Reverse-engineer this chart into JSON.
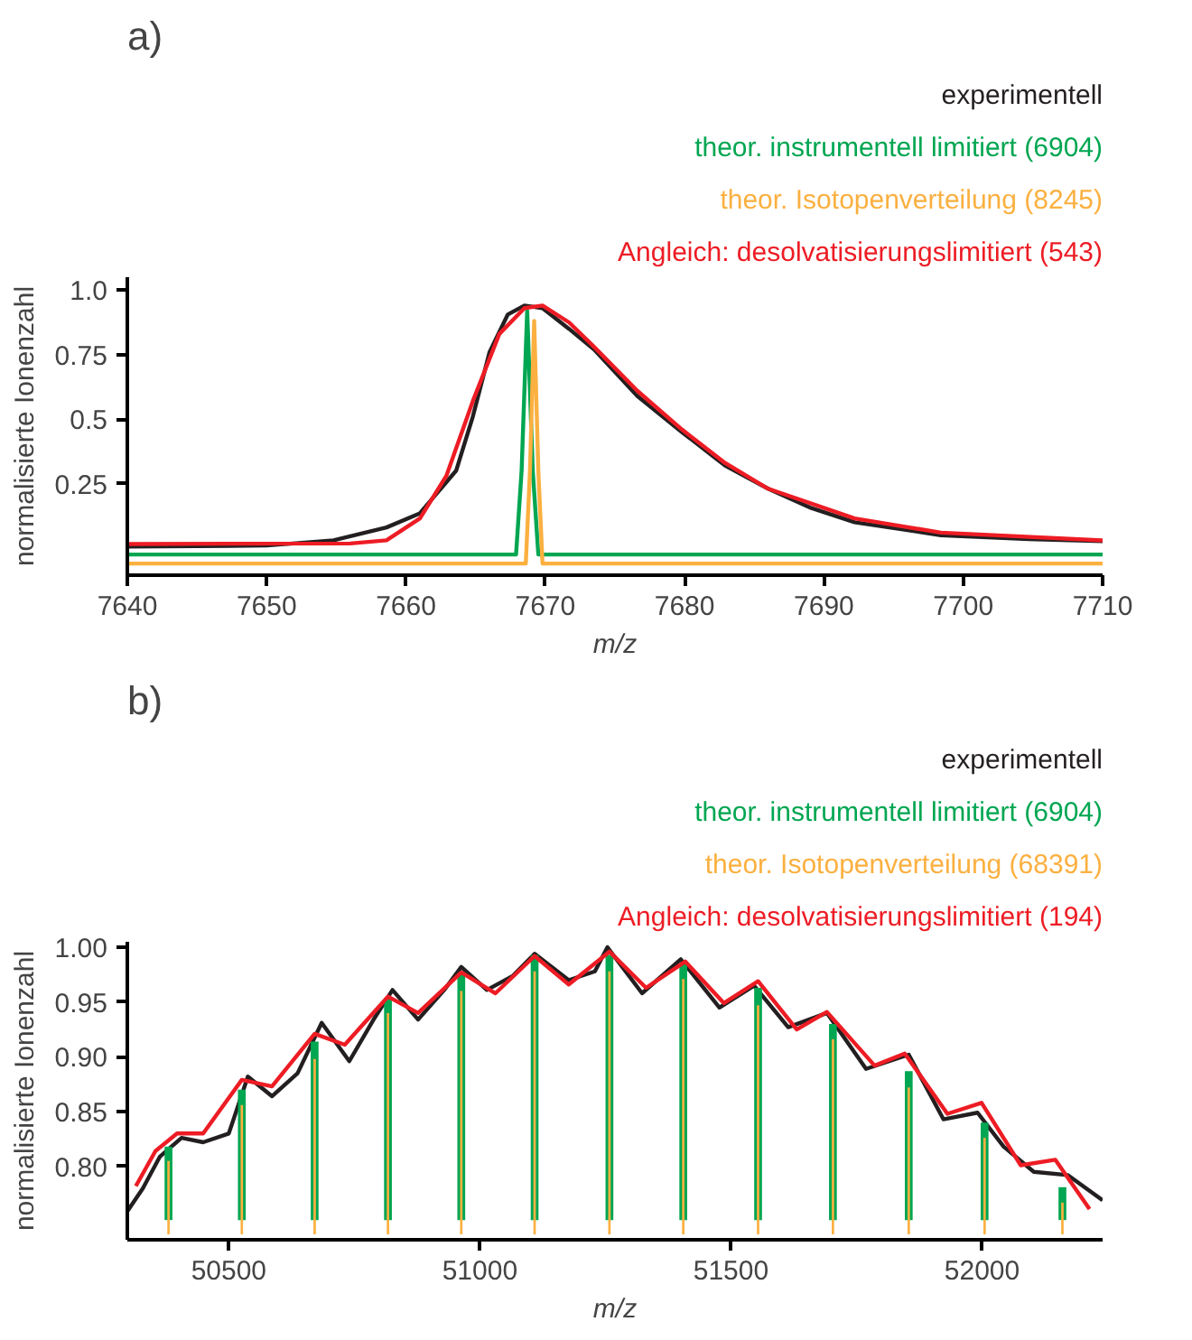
{
  "chart_data": [
    {
      "type": "line",
      "title": "a)",
      "xlabel": "m/z",
      "ylabel": "normalisierte Ionenzahl",
      "xlim": [
        7640,
        7710
      ],
      "ylim": [
        -0.105,
        1.05
      ],
      "xticks": [
        7640,
        7650,
        7660,
        7670,
        7680,
        7690,
        7700,
        7710
      ],
      "yticks": [
        {
          "value": 0.25,
          "label": "0.25"
        },
        {
          "value": 0.5,
          "label": "0.5"
        },
        {
          "value": 0.75,
          "label": "0.75"
        },
        {
          "value": 1,
          "label": "1.0"
        }
      ],
      "series": [
        {
          "name": "experimentell",
          "color": "#231f20",
          "x": [
            7640,
            7650,
            7654.8,
            7658.6,
            7661,
            7663.6,
            7664.8,
            7666,
            7667.3,
            7668.5,
            7669.8,
            7671.7,
            7673.5,
            7676.6,
            7679.8,
            7682.9,
            7686,
            7689.1,
            7692.2,
            7698.4,
            7704.7,
            7710
          ],
          "values": [
            0.006,
            0.01,
            0.03,
            0.08,
            0.135,
            0.3,
            0.51,
            0.76,
            0.905,
            0.94,
            0.93,
            0.85,
            0.77,
            0.59,
            0.45,
            0.32,
            0.23,
            0.155,
            0.1,
            0.05,
            0.035,
            0.027
          ]
        },
        {
          "name": "theor. instrumentell limitiert (6904)",
          "color": "#00a651",
          "x": [
            7640,
            7667.9,
            7668.3,
            7668.7,
            7669.1,
            7669.5,
            7710
          ],
          "values": [
            -0.025,
            -0.025,
            0.3,
            0.92,
            0.3,
            -0.025,
            -0.025
          ]
        },
        {
          "name": "theor. Isotopenverteilung (8245)",
          "color": "#fbb040",
          "x": [
            7640,
            7668.6,
            7668.9,
            7669.2,
            7669.5,
            7669.8,
            7710
          ],
          "values": [
            -0.06,
            -0.06,
            0.3,
            0.88,
            0.3,
            -0.06,
            -0.06
          ]
        },
        {
          "name": "Angleich: desolvatisierungslimitiert (543)",
          "color": "#ed1c24",
          "x": [
            7640,
            7656,
            7658.6,
            7661,
            7662.9,
            7664.8,
            7666.7,
            7668.5,
            7669.8,
            7671.7,
            7673.5,
            7676.6,
            7679.8,
            7682.9,
            7686,
            7692.2,
            7698.4,
            7710
          ],
          "values": [
            0.016,
            0.018,
            0.03,
            0.115,
            0.28,
            0.57,
            0.83,
            0.93,
            0.94,
            0.875,
            0.78,
            0.61,
            0.46,
            0.33,
            0.23,
            0.115,
            0.06,
            0.03
          ]
        }
      ]
    },
    {
      "type": "line",
      "title": "b)",
      "xlabel": "m/z",
      "ylabel": "normalisierte Ionenzahl",
      "xlim": [
        50298,
        52240
      ],
      "ylim": [
        0.733,
        1.005
      ],
      "xticks": [
        50500,
        51000,
        51500,
        52000
      ],
      "yticks": [
        {
          "value": 0.8,
          "label": "0.80"
        },
        {
          "value": 0.85,
          "label": "0.85"
        },
        {
          "value": 0.9,
          "label": "0.90"
        },
        {
          "value": 0.95,
          "label": "0.95"
        },
        {
          "value": 1,
          "label": "1.00"
        }
      ],
      "series": [
        {
          "name": "experimentell",
          "color": "#231f20",
          "x": [
            50298,
            50329,
            50363,
            50406,
            50449,
            50500,
            50538,
            50586,
            50637,
            50685,
            50740,
            50791,
            50826,
            50877,
            50929,
            50963,
            51014,
            51066,
            51109,
            51177,
            51229,
            51254,
            51323,
            51400,
            51477,
            51546,
            51614,
            51691,
            51769,
            51854,
            51923,
            51991,
            52043,
            52103,
            52171,
            52240
          ],
          "values": [
            0.759,
            0.78,
            0.809,
            0.826,
            0.822,
            0.83,
            0.882,
            0.864,
            0.885,
            0.931,
            0.896,
            0.936,
            0.961,
            0.934,
            0.961,
            0.982,
            0.961,
            0.974,
            0.994,
            0.97,
            0.978,
            1.0,
            0.958,
            0.989,
            0.945,
            0.965,
            0.927,
            0.94,
            0.889,
            0.902,
            0.843,
            0.849,
            0.818,
            0.795,
            0.792,
            0.769
          ]
        },
        {
          "name": "theor. instrumentell limitiert (6904)",
          "color": "#00a651",
          "type": "bar",
          "x": [
            50380,
            50526,
            50671,
            50817,
            50963,
            51109,
            51258,
            51405,
            51554,
            51703,
            51854,
            52005,
            52160
          ],
          "base": [
            0.751,
            0.751,
            0.751,
            0.751,
            0.751,
            0.751,
            0.751,
            0.751,
            0.751,
            0.751,
            0.751,
            0.751,
            0.751
          ],
          "values": [
            0.067,
            0.119,
            0.163,
            0.203,
            0.225,
            0.242,
            0.242,
            0.235,
            0.212,
            0.179,
            0.136,
            0.089,
            0.03
          ]
        },
        {
          "name": "theor. Isotopenverteilung (68391)",
          "color": "#fbb040",
          "type": "bar",
          "x": [
            50380,
            50526,
            50671,
            50817,
            50963,
            51109,
            51258,
            51405,
            51554,
            51703,
            51854,
            52005,
            52160
          ],
          "base": [
            0.738,
            0.738,
            0.738,
            0.738,
            0.738,
            0.738,
            0.738,
            0.738,
            0.738,
            0.738,
            0.738,
            0.738,
            0.738
          ],
          "values": [
            0.067,
            0.118,
            0.16,
            0.202,
            0.222,
            0.24,
            0.24,
            0.233,
            0.209,
            0.178,
            0.134,
            0.088,
            0.029
          ]
        },
        {
          "name": "Angleich: desolvatisierungslimitiert (194)",
          "color": "#ed1c24",
          "x": [
            50315,
            50354,
            50397,
            50449,
            50526,
            50586,
            50671,
            50731,
            50817,
            50877,
            50963,
            51031,
            51109,
            51177,
            51258,
            51331,
            51409,
            51486,
            51554,
            51631,
            51691,
            51786,
            51846,
            51931,
            51999,
            52077,
            52146,
            52214
          ],
          "values": [
            0.782,
            0.814,
            0.83,
            0.83,
            0.879,
            0.873,
            0.921,
            0.911,
            0.955,
            0.94,
            0.977,
            0.958,
            0.992,
            0.966,
            0.996,
            0.963,
            0.987,
            0.949,
            0.969,
            0.925,
            0.941,
            0.892,
            0.903,
            0.848,
            0.858,
            0.801,
            0.806,
            0.761
          ]
        }
      ]
    }
  ]
}
